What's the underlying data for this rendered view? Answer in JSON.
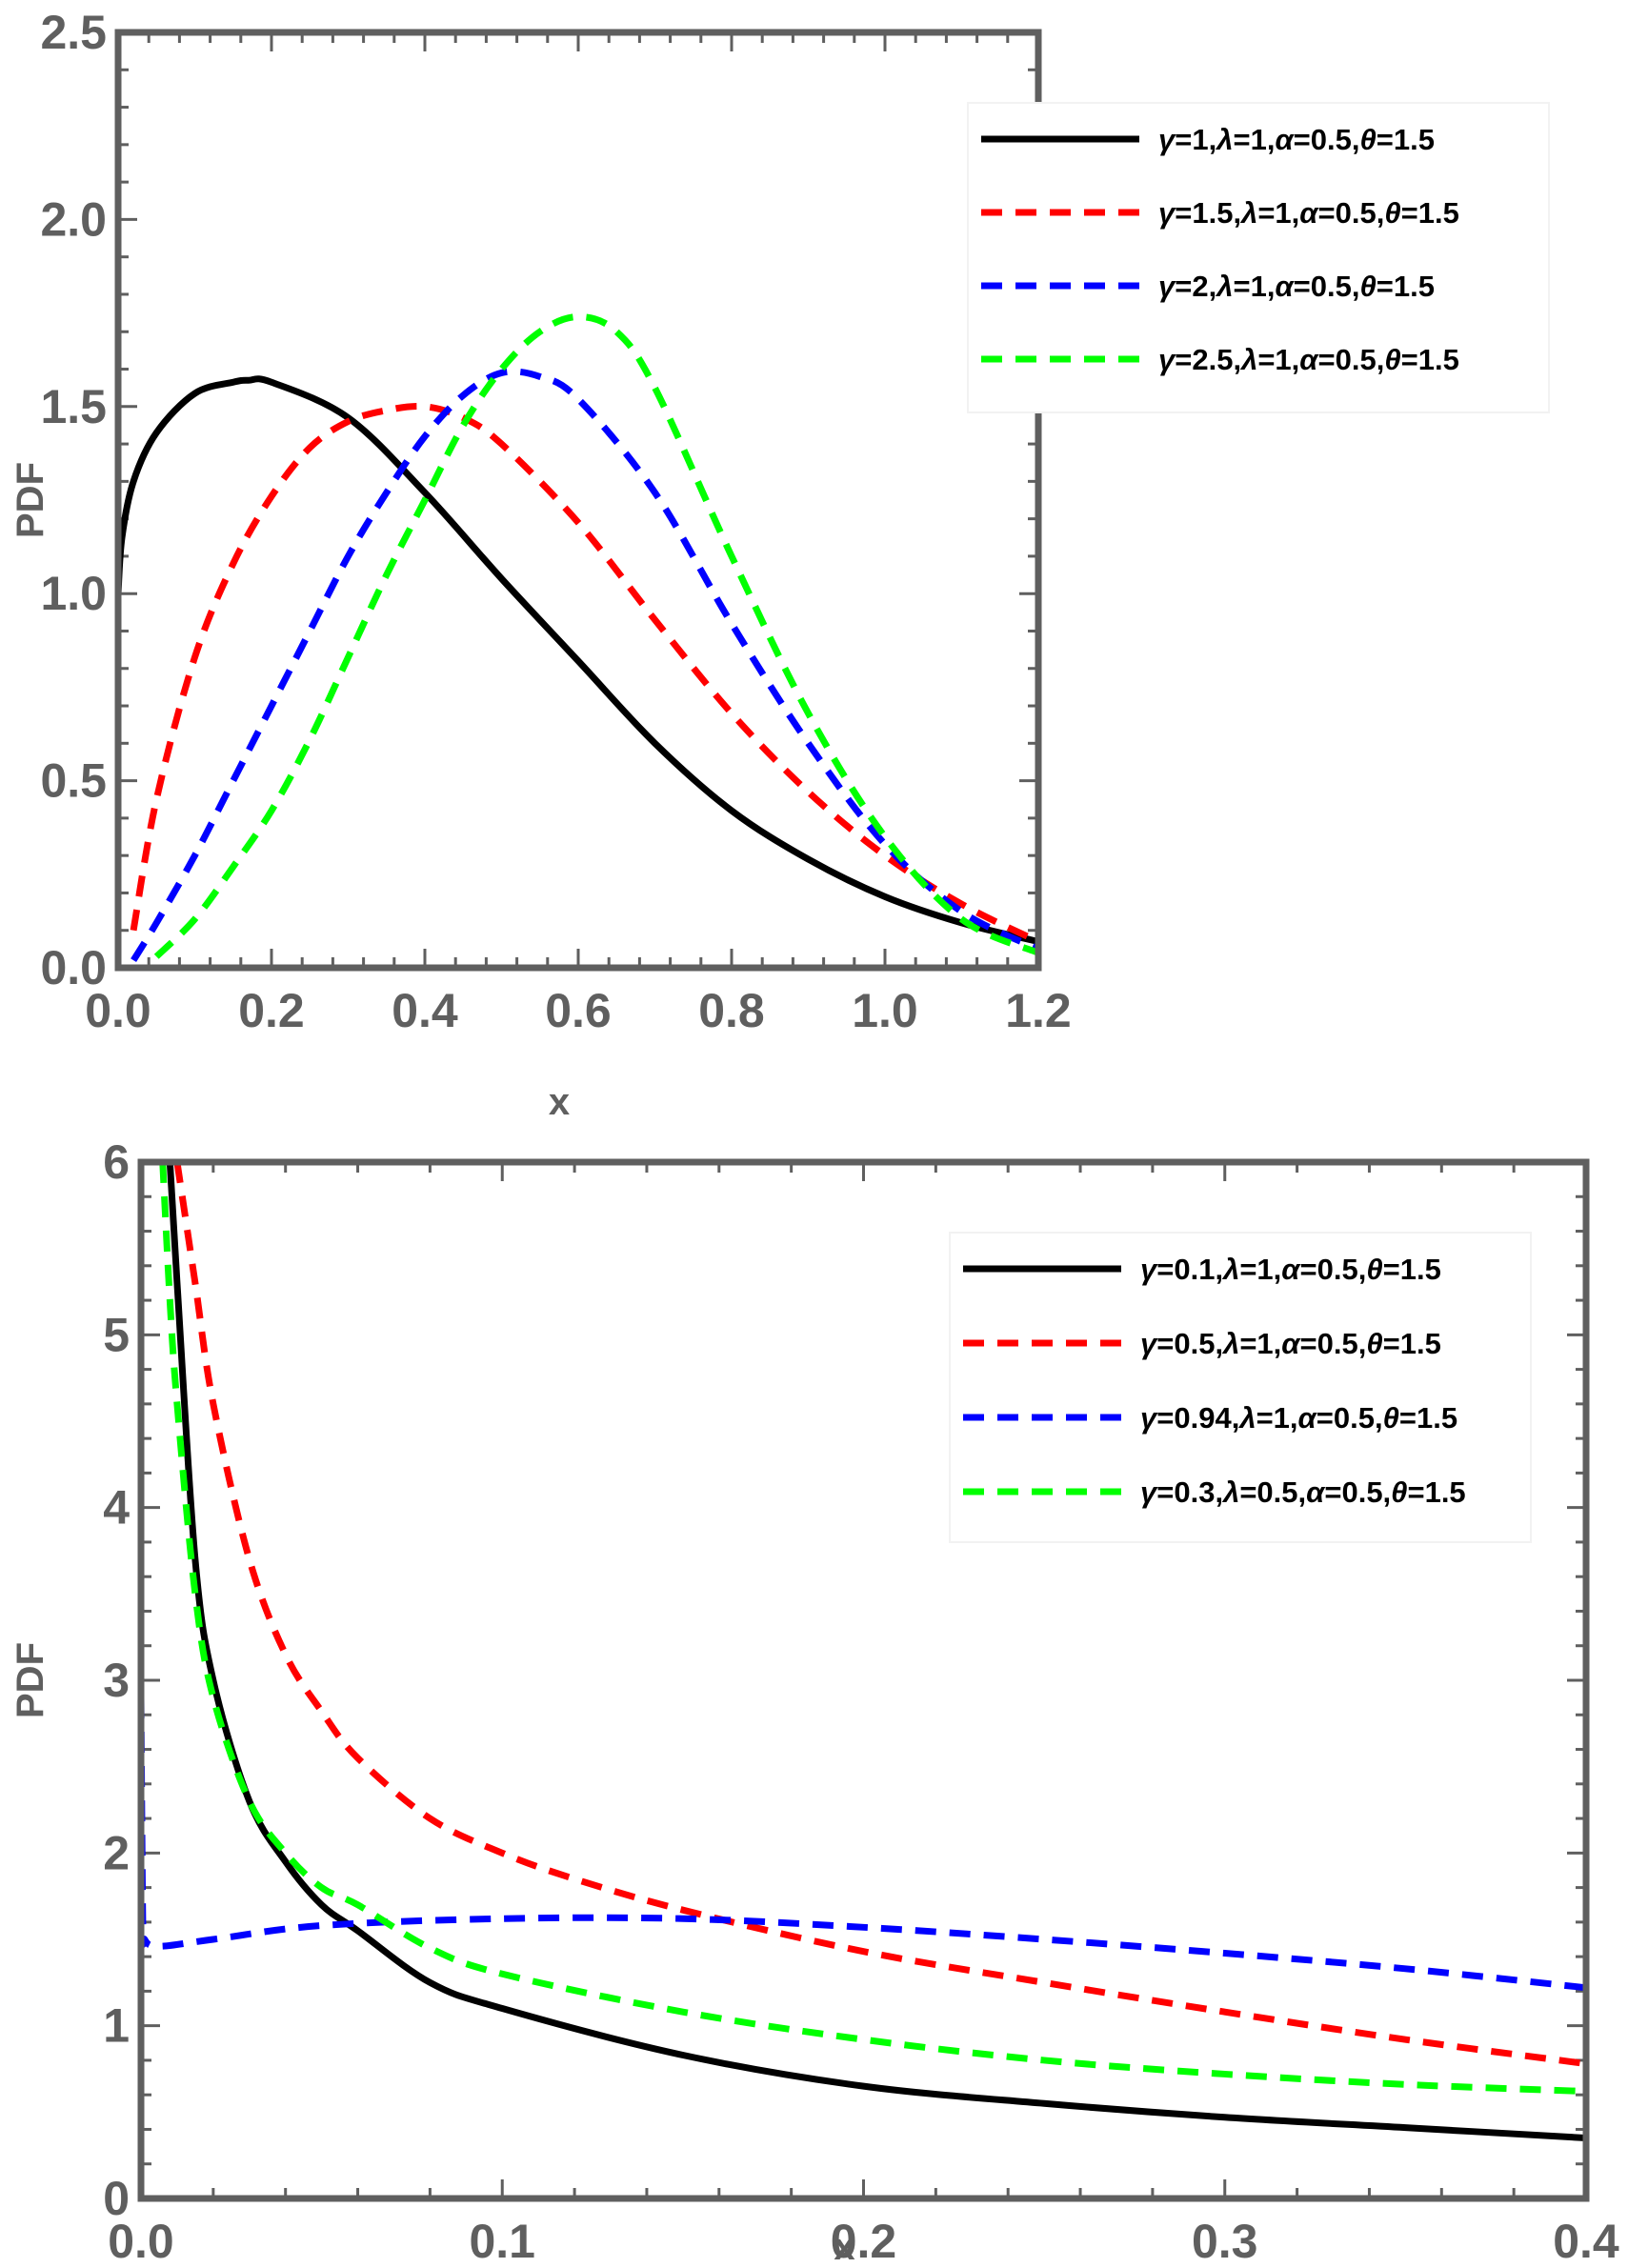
{
  "chart_data": [
    {
      "type": "line",
      "xlabel": "x",
      "ylabel": "PDF",
      "xlim": [
        0,
        1.2
      ],
      "ylim": [
        0,
        2.5
      ],
      "xticks": [
        "0.0",
        "0.2",
        "0.4",
        "0.6",
        "0.8",
        "1.0",
        "1.2"
      ],
      "yticks": [
        "0.0",
        "0.5",
        "1.0",
        "1.5",
        "2.0",
        "2.5"
      ],
      "legend_position": "top-right",
      "series": [
        {
          "name": "γ=1,λ=1,α=0.5,θ=1.5",
          "color": "#000000",
          "style": "solid",
          "x": [
            0,
            0.005,
            0.02,
            0.05,
            0.1,
            0.15,
            0.17,
            0.2,
            0.3,
            0.4,
            0.5,
            0.6,
            0.7,
            0.8,
            0.9,
            1.0,
            1.1,
            1.2
          ],
          "y": [
            1.0,
            1.15,
            1.3,
            1.43,
            1.535,
            1.565,
            1.57,
            1.565,
            1.47,
            1.27,
            1.04,
            0.82,
            0.6,
            0.42,
            0.29,
            0.19,
            0.12,
            0.07
          ]
        },
        {
          "name": "γ=1.5,λ=1,α=0.5,θ=1.5",
          "color": "#ff0000",
          "style": "dashed",
          "x": [
            0.02,
            0.05,
            0.1,
            0.15,
            0.2,
            0.25,
            0.3,
            0.35,
            0.4,
            0.45,
            0.5,
            0.6,
            0.7,
            0.8,
            0.9,
            1.0,
            1.1,
            1.2
          ],
          "y": [
            0.1,
            0.45,
            0.83,
            1.08,
            1.26,
            1.39,
            1.46,
            1.49,
            1.5,
            1.47,
            1.4,
            1.19,
            0.93,
            0.68,
            0.47,
            0.3,
            0.17,
            0.07
          ]
        },
        {
          "name": "γ=2,λ=1,α=0.5,θ=1.5",
          "color": "#0000ff",
          "style": "dashed",
          "x": [
            0.02,
            0.05,
            0.1,
            0.15,
            0.2,
            0.25,
            0.3,
            0.35,
            0.4,
            0.45,
            0.5,
            0.55,
            0.6,
            0.7,
            0.8,
            0.9,
            1.0,
            1.1,
            1.2
          ],
          "y": [
            0.02,
            0.12,
            0.3,
            0.5,
            0.7,
            0.9,
            1.1,
            1.27,
            1.42,
            1.53,
            1.59,
            1.58,
            1.52,
            1.27,
            0.92,
            0.6,
            0.33,
            0.15,
            0.05
          ]
        },
        {
          "name": "γ=2.5,λ=1,α=0.5,θ=1.5",
          "color": "#00ff00",
          "style": "dashed",
          "x": [
            0.05,
            0.1,
            0.15,
            0.2,
            0.25,
            0.3,
            0.35,
            0.4,
            0.45,
            0.5,
            0.55,
            0.6,
            0.65,
            0.7,
            0.8,
            0.9,
            1.0,
            1.1,
            1.2
          ],
          "y": [
            0.03,
            0.13,
            0.27,
            0.42,
            0.61,
            0.83,
            1.05,
            1.25,
            1.45,
            1.6,
            1.7,
            1.74,
            1.7,
            1.55,
            1.1,
            0.68,
            0.35,
            0.13,
            0.04
          ]
        }
      ]
    },
    {
      "type": "line",
      "xlabel": "x",
      "ylabel": "PDF",
      "xlim": [
        0,
        0.4
      ],
      "ylim": [
        0,
        6
      ],
      "xticks": [
        "0.0",
        "0.1",
        "0.2",
        "0.3",
        "0.4"
      ],
      "yticks": [
        "0",
        "1",
        "2",
        "3",
        "4",
        "5",
        "6"
      ],
      "legend_position": "top-right",
      "series": [
        {
          "name": "γ=0.1,λ=1,α=0.5,θ=1.5",
          "color": "#000000",
          "style": "solid",
          "x": [
            0.008,
            0.01,
            0.015,
            0.02,
            0.03,
            0.04,
            0.05,
            0.06,
            0.08,
            0.1,
            0.15,
            0.2,
            0.25,
            0.3,
            0.35,
            0.4
          ],
          "y": [
            6.0,
            5.3,
            3.7,
            3.0,
            2.3,
            1.95,
            1.7,
            1.55,
            1.25,
            1.1,
            0.83,
            0.65,
            0.55,
            0.47,
            0.41,
            0.35
          ]
        },
        {
          "name": "γ=0.5,λ=1,α=0.5,θ=1.5",
          "color": "#ff0000",
          "style": "dashed",
          "x": [
            0.01,
            0.015,
            0.02,
            0.03,
            0.04,
            0.05,
            0.06,
            0.08,
            0.1,
            0.12,
            0.15,
            0.2,
            0.25,
            0.3,
            0.35,
            0.4
          ],
          "y": [
            6.0,
            5.3,
            4.6,
            3.7,
            3.15,
            2.82,
            2.55,
            2.2,
            2.0,
            1.85,
            1.67,
            1.43,
            1.25,
            1.08,
            0.92,
            0.78
          ]
        },
        {
          "name": "γ=0.94,λ=1,α=0.5,θ=1.5",
          "color": "#0000ff",
          "style": "dashed",
          "x": [
            0,
            0.0005,
            0.001,
            0.005,
            0.02,
            0.05,
            0.1,
            0.15,
            0.2,
            0.25,
            0.3,
            0.35,
            0.4
          ],
          "y": [
            2.9,
            1.6,
            1.5,
            1.46,
            1.5,
            1.58,
            1.62,
            1.62,
            1.57,
            1.5,
            1.42,
            1.33,
            1.22
          ]
        },
        {
          "name": "γ=0.3,λ=0.5,α=0.5,θ=1.5",
          "color": "#00ff00",
          "style": "dashed",
          "x": [
            0.006,
            0.008,
            0.01,
            0.015,
            0.02,
            0.03,
            0.04,
            0.05,
            0.06,
            0.08,
            0.1,
            0.15,
            0.2,
            0.25,
            0.3,
            0.35,
            0.4
          ],
          "y": [
            6.0,
            5.2,
            4.6,
            3.5,
            2.9,
            2.3,
            2.0,
            1.8,
            1.7,
            1.45,
            1.3,
            1.08,
            0.92,
            0.8,
            0.72,
            0.66,
            0.62
          ]
        }
      ]
    }
  ]
}
